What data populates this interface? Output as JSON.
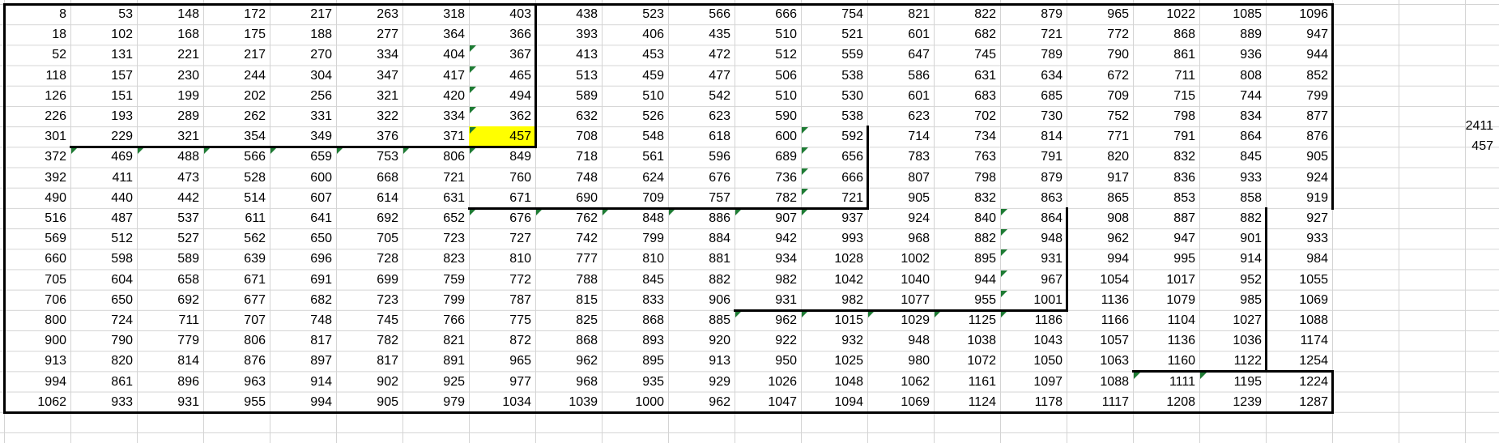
{
  "sheet": {
    "rows": [
      [
        "8",
        "53",
        "148",
        "172",
        "217",
        "263",
        "318",
        "403",
        "438",
        "523",
        "566",
        "666",
        "754",
        "821",
        "822",
        "879",
        "965",
        "1022",
        "1085",
        "1096"
      ],
      [
        "18",
        "102",
        "168",
        "175",
        "188",
        "277",
        "364",
        "366",
        "393",
        "406",
        "435",
        "510",
        "521",
        "601",
        "682",
        "721",
        "772",
        "868",
        "889",
        "947"
      ],
      [
        "52",
        "131",
        "221",
        "217",
        "270",
        "334",
        "404",
        "367",
        "413",
        "453",
        "472",
        "512",
        "559",
        "647",
        "745",
        "789",
        "790",
        "861",
        "936",
        "944"
      ],
      [
        "118",
        "157",
        "230",
        "244",
        "304",
        "347",
        "417",
        "465",
        "513",
        "459",
        "477",
        "506",
        "538",
        "586",
        "631",
        "634",
        "672",
        "711",
        "808",
        "852"
      ],
      [
        "126",
        "151",
        "199",
        "202",
        "256",
        "321",
        "420",
        "494",
        "589",
        "510",
        "542",
        "510",
        "530",
        "601",
        "683",
        "685",
        "709",
        "715",
        "744",
        "799"
      ],
      [
        "226",
        "193",
        "289",
        "262",
        "331",
        "322",
        "334",
        "362",
        "632",
        "526",
        "623",
        "590",
        "538",
        "623",
        "702",
        "730",
        "752",
        "798",
        "834",
        "877"
      ],
      [
        "301",
        "229",
        "321",
        "354",
        "349",
        "376",
        "371",
        "457",
        "708",
        "548",
        "618",
        "600",
        "592",
        "714",
        "734",
        "814",
        "771",
        "791",
        "864",
        "876"
      ],
      [
        "372",
        "469",
        "488",
        "566",
        "659",
        "753",
        "806",
        "849",
        "718",
        "561",
        "596",
        "689",
        "656",
        "783",
        "763",
        "791",
        "820",
        "832",
        "845",
        "905"
      ],
      [
        "392",
        "411",
        "473",
        "528",
        "600",
        "668",
        "721",
        "760",
        "748",
        "624",
        "676",
        "736",
        "666",
        "807",
        "798",
        "879",
        "917",
        "836",
        "933",
        "924"
      ],
      [
        "490",
        "440",
        "442",
        "514",
        "607",
        "614",
        "631",
        "671",
        "690",
        "709",
        "757",
        "782",
        "721",
        "905",
        "832",
        "863",
        "865",
        "853",
        "858",
        "919"
      ],
      [
        "516",
        "487",
        "537",
        "611",
        "641",
        "692",
        "652",
        "676",
        "762",
        "848",
        "886",
        "907",
        "937",
        "924",
        "840",
        "864",
        "908",
        "887",
        "882",
        "927"
      ],
      [
        "569",
        "512",
        "527",
        "562",
        "650",
        "705",
        "723",
        "727",
        "742",
        "799",
        "884",
        "942",
        "993",
        "968",
        "882",
        "948",
        "962",
        "947",
        "901",
        "933"
      ],
      [
        "660",
        "598",
        "589",
        "639",
        "696",
        "728",
        "823",
        "810",
        "777",
        "810",
        "881",
        "934",
        "1028",
        "1002",
        "895",
        "931",
        "994",
        "995",
        "914",
        "984"
      ],
      [
        "705",
        "604",
        "658",
        "671",
        "691",
        "699",
        "759",
        "772",
        "788",
        "845",
        "882",
        "982",
        "1042",
        "1040",
        "944",
        "967",
        "1054",
        "1017",
        "952",
        "1055"
      ],
      [
        "706",
        "650",
        "692",
        "677",
        "682",
        "723",
        "799",
        "787",
        "815",
        "833",
        "906",
        "931",
        "982",
        "1077",
        "955",
        "1001",
        "1136",
        "1079",
        "985",
        "1069"
      ],
      [
        "800",
        "724",
        "711",
        "707",
        "748",
        "745",
        "766",
        "775",
        "825",
        "868",
        "885",
        "962",
        "1015",
        "1029",
        "1125",
        "1186",
        "1166",
        "1104",
        "1027",
        "1088"
      ],
      [
        "900",
        "790",
        "779",
        "806",
        "817",
        "782",
        "821",
        "872",
        "868",
        "893",
        "920",
        "922",
        "932",
        "948",
        "1038",
        "1043",
        "1057",
        "1136",
        "1036",
        "1174"
      ],
      [
        "913",
        "820",
        "814",
        "876",
        "897",
        "817",
        "891",
        "965",
        "962",
        "895",
        "913",
        "950",
        "1025",
        "980",
        "1072",
        "1050",
        "1063",
        "1160",
        "1122",
        "1254"
      ],
      [
        "994",
        "861",
        "896",
        "963",
        "914",
        "902",
        "925",
        "977",
        "968",
        "935",
        "929",
        "1026",
        "1048",
        "1062",
        "1161",
        "1097",
        "1088",
        "1111",
        "1195",
        "1224"
      ],
      [
        "1062",
        "933",
        "931",
        "955",
        "994",
        "905",
        "979",
        "1034",
        "1039",
        "1000",
        "962",
        "1047",
        "1094",
        "1069",
        "1124",
        "1178",
        "1117",
        "1208",
        "1239",
        "1287"
      ]
    ],
    "highlight_color": "#ffff00",
    "indicator_color": "#1e7b34",
    "side_values": [
      "2411",
      "457"
    ]
  }
}
